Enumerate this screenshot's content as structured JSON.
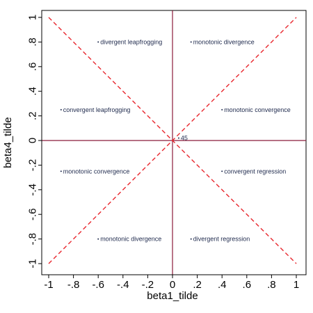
{
  "chart_data": {
    "type": "scatter",
    "title": "",
    "xlabel": "beta1_tilde",
    "ylabel": "beta4_tilde",
    "xlim": [
      -1,
      1
    ],
    "ylim": [
      -1,
      1
    ],
    "grid": false,
    "x_ticks": [
      {
        "value": -1,
        "label": "-1"
      },
      {
        "value": -0.8,
        "label": "-.8"
      },
      {
        "value": -0.6,
        "label": "-.6"
      },
      {
        "value": -0.4,
        "label": "-.4"
      },
      {
        "value": -0.2,
        "label": "-.2"
      },
      {
        "value": 0,
        "label": "0"
      },
      {
        "value": 0.2,
        "label": ".2"
      },
      {
        "value": 0.4,
        "label": ".4"
      },
      {
        "value": 0.6,
        "label": ".6"
      },
      {
        "value": 0.8,
        "label": ".8"
      },
      {
        "value": 1,
        "label": "1"
      }
    ],
    "y_ticks": [
      {
        "value": -1,
        "label": "-1"
      },
      {
        "value": -0.8,
        "label": "-.8"
      },
      {
        "value": -0.6,
        "label": "-.6"
      },
      {
        "value": -0.4,
        "label": "-.4"
      },
      {
        "value": -0.2,
        "label": "-.2"
      },
      {
        "value": 0,
        "label": "0"
      },
      {
        "value": 0.2,
        "label": ".2"
      },
      {
        "value": 0.4,
        "label": ".4"
      },
      {
        "value": 0.6,
        "label": ".6"
      },
      {
        "value": 0.8,
        "label": ".8"
      },
      {
        "value": 1,
        "label": "1"
      }
    ],
    "reference_lines": [
      {
        "kind": "horizontal",
        "value": 0,
        "color": "#8b1a3a"
      },
      {
        "kind": "vertical",
        "value": 0,
        "color": "#8b1a3a"
      }
    ],
    "diagonal_lines": [
      {
        "from": [
          -1,
          1
        ],
        "to": [
          1,
          -1
        ],
        "color": "#e8262d",
        "style": "dashed"
      },
      {
        "from": [
          -1,
          -1
        ],
        "to": [
          1,
          1
        ],
        "color": "#e8262d",
        "style": "dashed"
      }
    ],
    "points": [
      {
        "x": -0.6,
        "y": 0.8,
        "label": "divergent leapfrogging"
      },
      {
        "x": 0.15,
        "y": 0.8,
        "label": "monotonic divergence"
      },
      {
        "x": -0.9,
        "y": 0.25,
        "label": "convergent leapfrogging"
      },
      {
        "x": 0.4,
        "y": 0.25,
        "label": "monotonic convergence"
      },
      {
        "x": 0.05,
        "y": 0.02,
        "label": "45"
      },
      {
        "x": -0.9,
        "y": -0.25,
        "label": "monotonic convergence"
      },
      {
        "x": 0.4,
        "y": -0.25,
        "label": "convergent regression"
      },
      {
        "x": -0.6,
        "y": -0.8,
        "label": "monotonic divergence"
      },
      {
        "x": 0.15,
        "y": -0.8,
        "label": "divergent regression"
      }
    ],
    "marker_color": "#1f2a4d"
  }
}
